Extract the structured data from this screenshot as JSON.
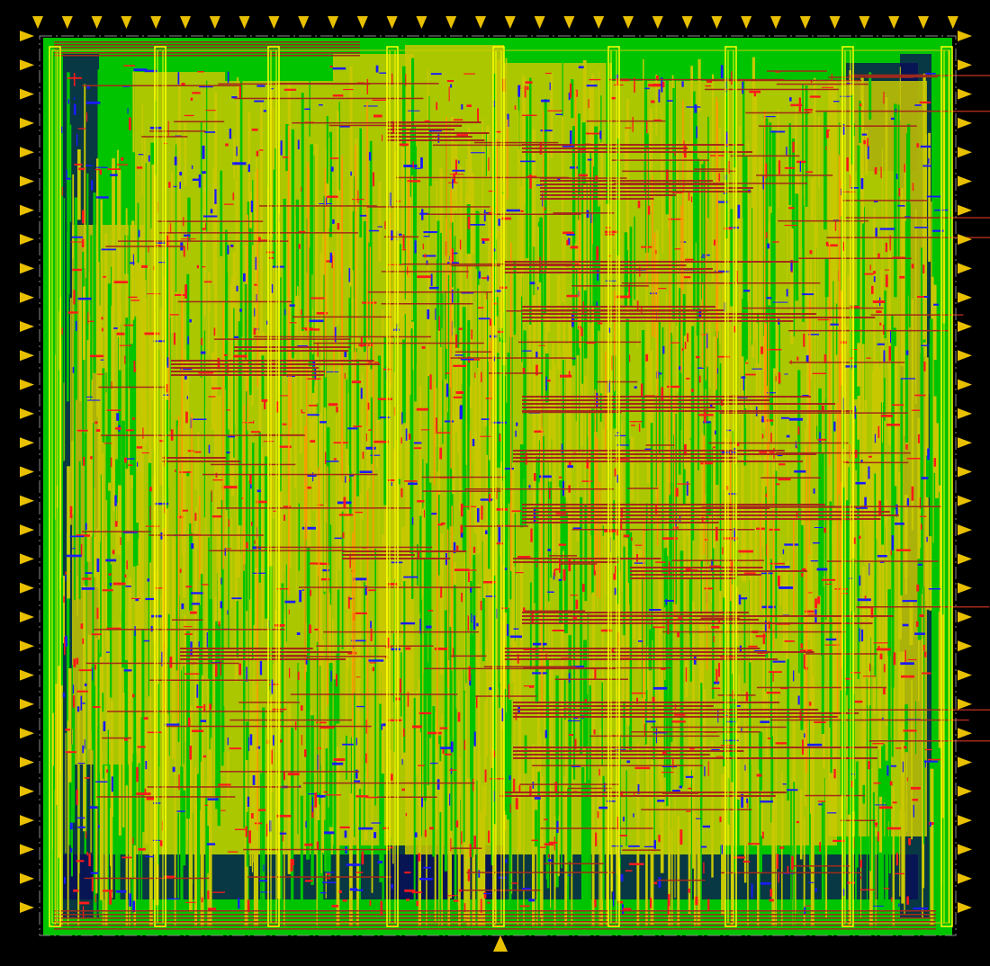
{
  "view": {
    "kind": "chip-layout-render",
    "background": "#000000"
  },
  "layers": [
    {
      "name": "substrate-fill",
      "color": "#00c400"
    },
    {
      "name": "cell-fill",
      "color": "#c8c800"
    },
    {
      "name": "metal-red",
      "color": "#ff1a1a"
    },
    {
      "name": "metal-blue",
      "color": "#1a1aff"
    },
    {
      "name": "metal-brown",
      "color": "#a52a1a"
    },
    {
      "name": "metal-orange",
      "color": "#ff9900"
    },
    {
      "name": "power-straps",
      "color": "#ffff00"
    },
    {
      "name": "io-pins",
      "color": "#e8c000"
    }
  ],
  "pins": {
    "top_count": 32,
    "left_count": 31,
    "right_count": 31,
    "bottom_count": 1
  }
}
